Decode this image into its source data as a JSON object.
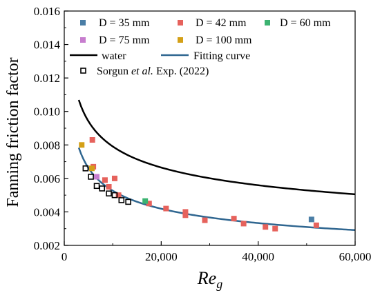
{
  "chart_data": {
    "type": "scatter",
    "xlabel_main": "Re",
    "xlabel_sub": "g",
    "ylabel": "Fanning friction factor",
    "xlim": [
      0,
      60000
    ],
    "ylim": [
      0.002,
      0.016
    ],
    "x_ticks": [
      {
        "value": 0,
        "label": "0"
      },
      {
        "value": 20000,
        "label": "20,000"
      },
      {
        "value": 40000,
        "label": "40,000"
      },
      {
        "value": 60000,
        "label": "60,000"
      }
    ],
    "y_ticks": [
      {
        "value": 0.002,
        "label": "0.002"
      },
      {
        "value": 0.004,
        "label": "0.004"
      },
      {
        "value": 0.006,
        "label": "0.006"
      },
      {
        "value": 0.008,
        "label": "0.008"
      },
      {
        "value": 0.01,
        "label": "0.010"
      },
      {
        "value": 0.012,
        "label": "0.012"
      },
      {
        "value": 0.014,
        "label": "0.014"
      },
      {
        "value": 0.016,
        "label": "0.016"
      }
    ],
    "legend": {
      "d35": "D =  35 mm",
      "d42": "D =  42 mm",
      "d60": "D =  60 mm",
      "d75": "D =  75 mm",
      "d100": "D =  100 mm",
      "water": "water",
      "fit": "Fitting curve",
      "sorgun_pre": "Sorgun ",
      "sorgun_it": "et al.",
      "sorgun_post": " Exp. (2022)"
    },
    "series": [
      {
        "key": "d35",
        "color": "#4a7ea6",
        "points": [
          [
            51000,
            0.00355
          ]
        ]
      },
      {
        "key": "d42",
        "color": "#e6625c",
        "points": [
          [
            5800,
            0.0083
          ],
          [
            6000,
            0.0067
          ],
          [
            8400,
            0.0059
          ],
          [
            9200,
            0.0055
          ],
          [
            10400,
            0.006
          ],
          [
            11200,
            0.005
          ],
          [
            17500,
            0.0045
          ],
          [
            21000,
            0.0042
          ],
          [
            25000,
            0.004
          ],
          [
            25000,
            0.0038
          ],
          [
            29000,
            0.0035
          ],
          [
            35000,
            0.0036
          ],
          [
            37000,
            0.0033
          ],
          [
            41500,
            0.0031
          ],
          [
            43500,
            0.003
          ],
          [
            52000,
            0.0032
          ]
        ]
      },
      {
        "key": "d60",
        "color": "#3cb371",
        "points": [
          [
            16700,
            0.00465
          ]
        ]
      },
      {
        "key": "d75",
        "color": "#c77dce",
        "points": [
          [
            6700,
            0.0061
          ]
        ]
      },
      {
        "key": "d100",
        "color": "#d4a017",
        "points": [
          [
            3600,
            0.008
          ],
          [
            5700,
            0.0066
          ]
        ]
      },
      {
        "key": "sorgun",
        "color": "#000000",
        "hollow": true,
        "points": [
          [
            4400,
            0.0066
          ],
          [
            5500,
            0.0061
          ],
          [
            6700,
            0.00555
          ],
          [
            7800,
            0.0054
          ],
          [
            9200,
            0.0051
          ],
          [
            10400,
            0.005
          ],
          [
            11800,
            0.0047
          ],
          [
            13200,
            0.0046
          ]
        ]
      }
    ],
    "curves": [
      {
        "key": "water",
        "color": "#000000",
        "a": 0.0791,
        "b": -0.25,
        "x_start": 3000,
        "x_end": 60000
      },
      {
        "key": "fit",
        "color": "#2f6690",
        "a": 0.11,
        "b": -0.33,
        "x_start": 3000,
        "x_end": 60000
      }
    ]
  }
}
